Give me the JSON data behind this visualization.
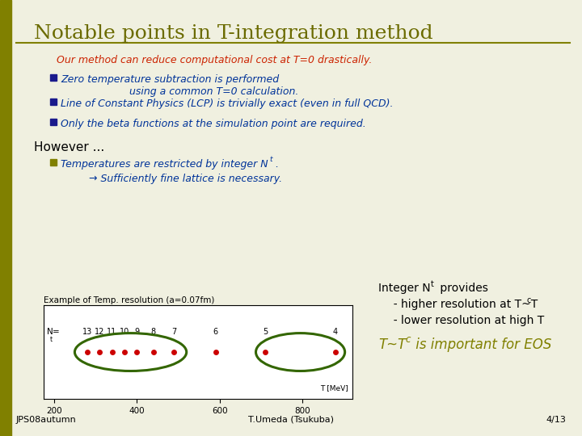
{
  "title": "Notable points in T-integration method",
  "title_color": "#6B6B00",
  "bg_color": "#F0F0E0",
  "left_bar_color": "#808000",
  "line_color": "#808000",
  "highlight_text": "Our method can reduce computational cost at T=0 drastically.",
  "highlight_color": "#CC2200",
  "bullet_color": "#003399",
  "bullet_square_color": "#1a1a8c",
  "bullet1_line1": "Zero temperature subtraction is performed",
  "bullet1_line2": "using a common T=0 calculation.",
  "bullet2": "Line of Constant Physics (LCP) is trivially exact (even in full QCD).",
  "bullet3": "Only the beta functions at the simulation point are required.",
  "however_text": "However ...",
  "however_color": "#000000",
  "bullet4_color": "#003399",
  "bullet4_square_color": "#808000",
  "arrow_text": "→ Sufficiently fine lattice is necessary.",
  "arrow_color": "#003399",
  "plot_title": "Example of Temp. resolution (a=0.07fm)",
  "plot_title_color": "#000000",
  "nt_values": [
    13,
    12,
    11,
    10,
    9,
    8,
    7,
    6,
    5,
    4
  ],
  "nt_temps": [
    280,
    310,
    340,
    370,
    400,
    440,
    490,
    590,
    710,
    880
  ],
  "x_ticks": [
    200,
    400,
    600,
    800
  ],
  "x_tick_labels": [
    "200",
    "400",
    "600",
    "800"
  ],
  "dot_color": "#CC0000",
  "ellipse_color": "#336600",
  "right_text_color": "#000000",
  "bottom_right_color": "#808000",
  "footer_left": "JPS08autumn",
  "footer_center": "T.Umeda (Tsukuba)",
  "footer_right": "4/13",
  "footer_color": "#000000"
}
